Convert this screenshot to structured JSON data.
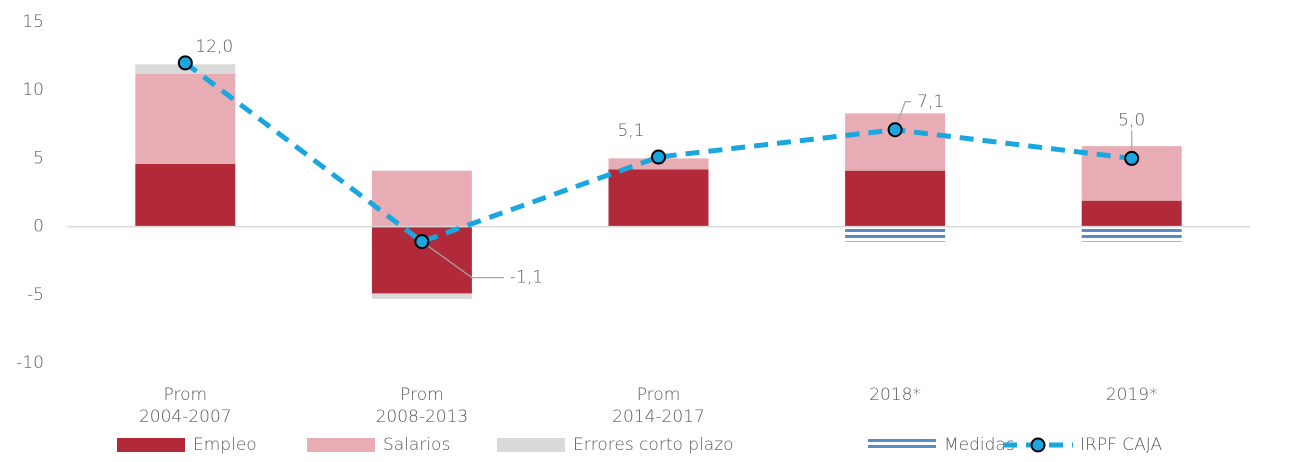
{
  "chart_data": {
    "type": "stacked-bar-line",
    "categories": [
      "Prom 2004-2007",
      "Prom 2008-2013",
      "Prom 2014-2017",
      "2018*",
      "2019*"
    ],
    "series": [
      {
        "name": "Empleo",
        "color": "#b22a3a",
        "values": [
          4.6,
          -4.9,
          4.2,
          4.1,
          1.9
        ]
      },
      {
        "name": "Salarios",
        "color": "#e8adb4",
        "values": [
          6.6,
          4.1,
          0.8,
          4.2,
          4.0
        ]
      },
      {
        "name": "Errores corto plazo",
        "color": "#d9d9d9",
        "values": [
          0.7,
          -0.4,
          null,
          null,
          null
        ]
      },
      {
        "name": "Medidas",
        "color": "#5b8bc4",
        "pattern": "double-line",
        "values": [
          null,
          null,
          null,
          -1.1,
          -1.1
        ]
      },
      {
        "name": "IRPF CAJA",
        "type": "line",
        "color": "#1aa7e0",
        "values": [
          12.0,
          -1.1,
          5.1,
          7.1,
          5.0
        ],
        "value_labels": [
          "12,0",
          "-1,1",
          "5,1",
          "7,1",
          "5,0"
        ]
      }
    ],
    "ylim": [
      -10,
      15
    ],
    "yticks": [
      -10,
      -5,
      0,
      5,
      10,
      15
    ],
    "grid": false,
    "legend": "bottom"
  }
}
